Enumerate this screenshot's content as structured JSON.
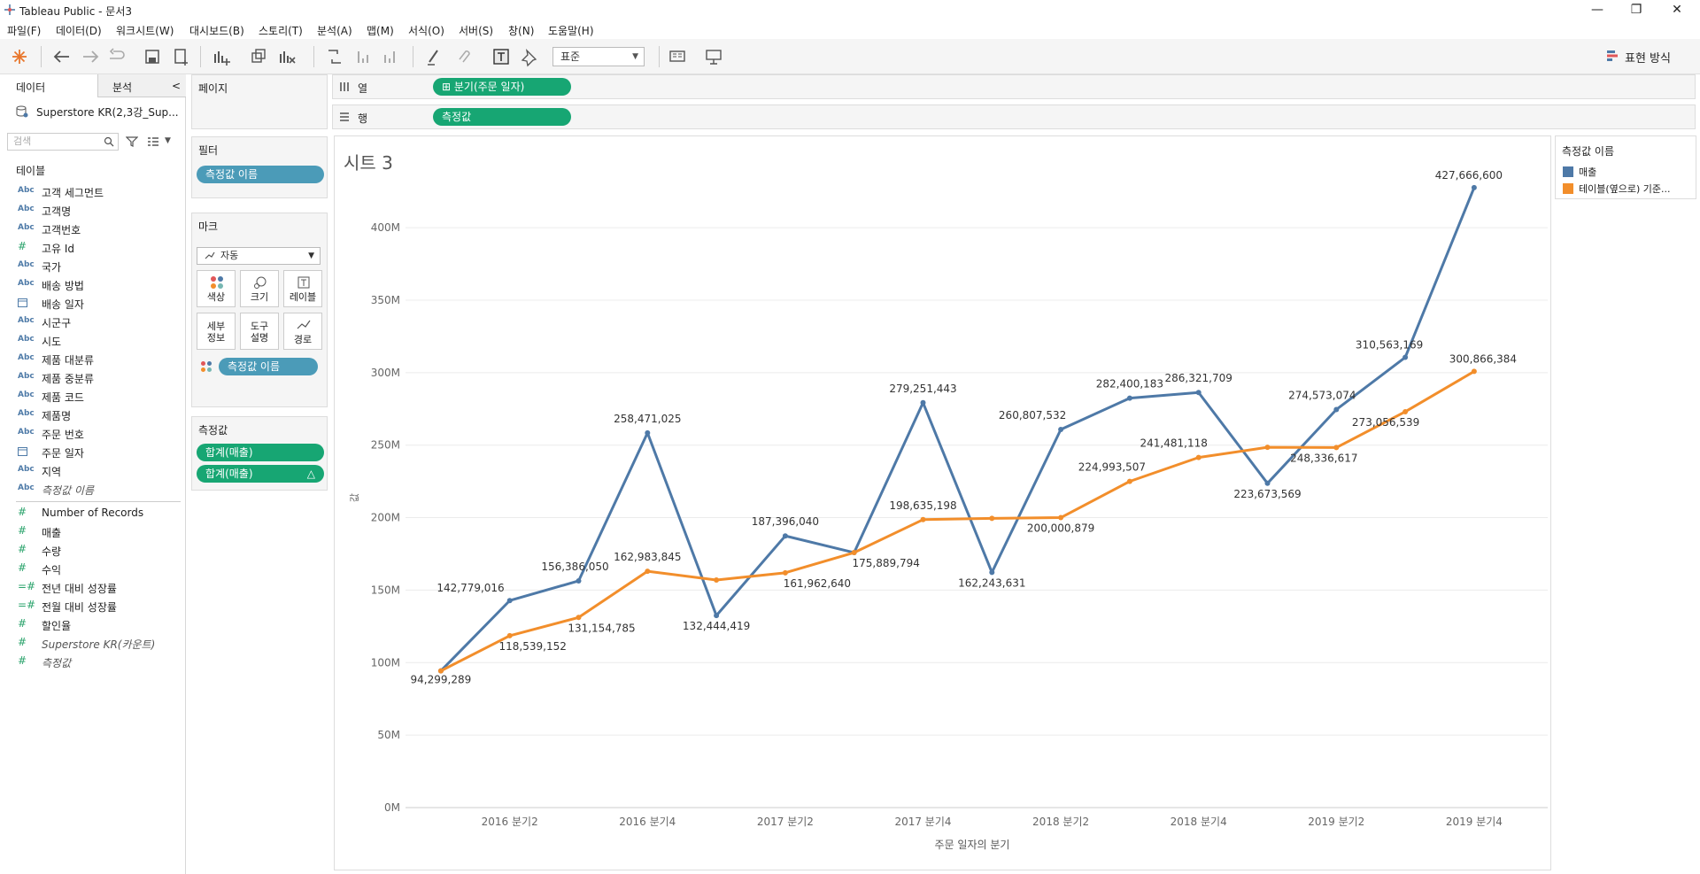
{
  "window": {
    "title": "Tableau Public - 문서3",
    "minimize": "—",
    "restore": "❐",
    "close": "✕"
  },
  "menu": [
    "파일(F)",
    "데이터(D)",
    "워크시트(W)",
    "대시보드(B)",
    "스토리(T)",
    "분석(A)",
    "맵(M)",
    "서식(O)",
    "서버(S)",
    "창(N)",
    "도움말(H)"
  ],
  "toolbar": {
    "fit_select": "표준",
    "show_me": "표현 방식"
  },
  "left_pane": {
    "tab_data": "데이터",
    "tab_analysis": "분석",
    "collapse": "<",
    "datasource": "Superstore KR(2,3강_Sup...",
    "search_placeholder": "검색",
    "tables_header": "테이블",
    "dimensions": [
      {
        "type": "Abc",
        "name": "고객 세그먼트"
      },
      {
        "type": "Abc",
        "name": "고객명"
      },
      {
        "type": "Abc",
        "name": "고객번호"
      },
      {
        "type": "#",
        "name": "고유 Id"
      },
      {
        "type": "Abc",
        "name": "국가"
      },
      {
        "type": "Abc",
        "name": "배송 방법"
      },
      {
        "type": "date",
        "name": "배송 일자"
      },
      {
        "type": "Abc",
        "name": "시군구"
      },
      {
        "type": "Abc",
        "name": "시도"
      },
      {
        "type": "Abc",
        "name": "제품 대분류"
      },
      {
        "type": "Abc",
        "name": "제품 중분류"
      },
      {
        "type": "Abc",
        "name": "제품 코드"
      },
      {
        "type": "Abc",
        "name": "제품명"
      },
      {
        "type": "Abc",
        "name": "주문 번호"
      },
      {
        "type": "date",
        "name": "주문 일자"
      },
      {
        "type": "Abc",
        "name": "지역"
      },
      {
        "type": "Abc",
        "name": "측정값 이름",
        "italic": true
      }
    ],
    "measures": [
      {
        "type": "#",
        "name": "Number of Records"
      },
      {
        "type": "#",
        "name": "매출"
      },
      {
        "type": "#",
        "name": "수량"
      },
      {
        "type": "#",
        "name": "수익"
      },
      {
        "type": "=#",
        "name": "전년 대비 성장률"
      },
      {
        "type": "=#",
        "name": "전월 대비 성장률"
      },
      {
        "type": "#",
        "name": "할인율"
      },
      {
        "type": "#",
        "name": "Superstore KR(카운트)",
        "italic": true
      },
      {
        "type": "#",
        "name": "측정값",
        "italic": true
      }
    ]
  },
  "cards": {
    "pages_title": "페이지",
    "filters_title": "필터",
    "filter_pill": "측정값 이름",
    "marks_title": "마크",
    "marks_type": "자동",
    "mark_buttons": [
      {
        "name": "color",
        "label": "색상"
      },
      {
        "name": "size",
        "label": "크기"
      },
      {
        "name": "label",
        "label": "레이블"
      },
      {
        "name": "detail",
        "label": "세부\n정보"
      },
      {
        "name": "tooltip",
        "label": "도구\n설명"
      },
      {
        "name": "path",
        "label": "경로"
      }
    ],
    "marks_pill": "측정값 이름",
    "measures_title": "측정값",
    "measure_pill_1": "합계(매출)",
    "measure_pill_2": "합계(매출)",
    "measure_pill_2_flag": "△"
  },
  "shelves": {
    "columns_label": "열",
    "columns_pill": "⊞ 분기(주문 일자)",
    "rows_label": "행",
    "rows_pill": "측정값"
  },
  "sheet": {
    "title": "시트 3"
  },
  "legend": {
    "title": "측정값 이름",
    "items": [
      {
        "label": "매출",
        "color": "#4e79a7"
      },
      {
        "label": "테이블(옆으로) 기준...",
        "color": "#f28e2b"
      }
    ]
  },
  "chart_data": {
    "type": "line",
    "xlabel": "주문 일자의 분기",
    "ylabel": "값",
    "ylim": [
      0,
      430000000
    ],
    "yticks": [
      "0M",
      "50M",
      "100M",
      "150M",
      "200M",
      "250M",
      "300M",
      "350M",
      "400M"
    ],
    "yticks_values": [
      0,
      50000000,
      100000000,
      150000000,
      200000000,
      250000000,
      300000000,
      350000000,
      400000000
    ],
    "categories": [
      "2016 분기1",
      "2016 분기2",
      "2016 분기3",
      "2016 분기4",
      "2017 분기1",
      "2017 분기2",
      "2017 분기3",
      "2017 분기4",
      "2018 분기1",
      "2018 분기2",
      "2018 분기3",
      "2018 분기4",
      "2019 분기1",
      "2019 분기2",
      "2019 분기3",
      "2019 분기4"
    ],
    "x_tick_labels": [
      "",
      "2016 분기2",
      "",
      "2016 분기4",
      "",
      "2017 분기2",
      "",
      "2017 분기4",
      "",
      "2018 분기2",
      "",
      "2018 분기4",
      "",
      "2019 분기2",
      "",
      "2019 분기4"
    ],
    "series": [
      {
        "name": "매출",
        "color": "#4e79a7",
        "values": [
          94299289,
          142779016,
          156386050,
          258471025,
          132444419,
          187396040,
          175889794,
          279251443,
          162243631,
          260807532,
          282400183,
          286321709,
          223673569,
          274573074,
          310563169,
          427666600
        ],
        "labels": [
          "94,299,289",
          "142,779,016",
          "156,386,050",
          "258,471,025",
          "132,444,419",
          "187,396,040",
          "",
          "279,251,443",
          "162,243,631",
          "260,807,532",
          "282,400,183",
          "286,321,709",
          "223,673,569",
          "274,573,074",
          "310,563,169",
          "427,666,600"
        ]
      },
      {
        "name": "테이블(옆으로) 기준...",
        "color": "#f28e2b",
        "values": [
          94299289,
          118539152,
          131154785,
          162983845,
          157000000,
          161962640,
          175889794,
          198635198,
          199500000,
          200000879,
          224993507,
          241481118,
          248500000,
          248336617,
          273056539,
          300866384
        ],
        "labels": [
          "",
          "118,539,152",
          "131,154,785",
          "162,983,845",
          "",
          "161,962,640",
          "175,889,794",
          "198,635,198",
          "",
          "200,000,879",
          "224,993,507",
          "241,481,118",
          "",
          "248,336,617",
          "273,056,539",
          "300,866,384"
        ]
      }
    ],
    "grid": true,
    "legend": "right"
  }
}
